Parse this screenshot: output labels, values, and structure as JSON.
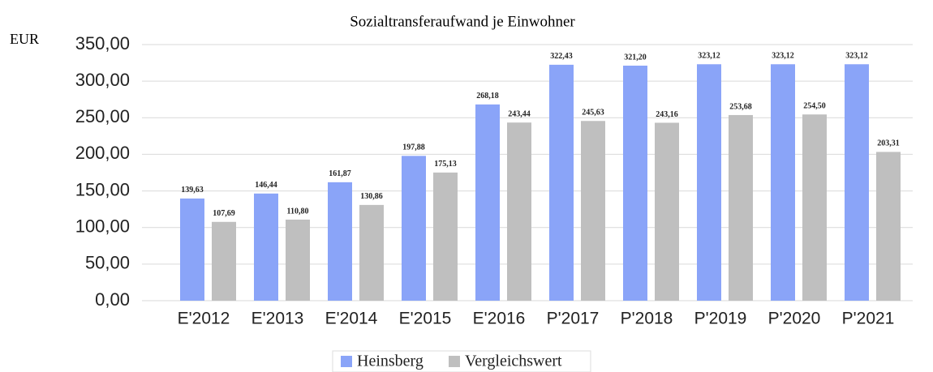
{
  "chart_data": {
    "type": "bar",
    "title": "Sozialtransferaufwand je Einwohner",
    "y_label": "EUR",
    "categories": [
      "E'2012",
      "E'2013",
      "E'2014",
      "E'2015",
      "E'2016",
      "P'2017",
      "P'2018",
      "P'2019",
      "P'2020",
      "P'2021"
    ],
    "series": [
      {
        "name": "Heinsberg",
        "color": "#8aa4f8",
        "values": [
          139.63,
          146.44,
          161.87,
          197.88,
          268.18,
          322.43,
          321.2,
          323.12,
          323.12,
          323.12
        ],
        "value_labels": [
          "139,63",
          "146,44",
          "161,87",
          "197,88",
          "268,18",
          "322,43",
          "321,20",
          "323,12",
          "323,12",
          "323,12"
        ]
      },
      {
        "name": "Vergleichswert",
        "color": "#bfbfbf",
        "values": [
          107.69,
          110.8,
          130.86,
          175.13,
          243.44,
          245.63,
          243.16,
          253.68,
          254.5,
          203.31
        ],
        "value_labels": [
          "107,69",
          "110,80",
          "130,86",
          "175,13",
          "243,44",
          "245,63",
          "243,16",
          "253,68",
          "254,50",
          "203,31"
        ]
      }
    ],
    "ylim": [
      0,
      350
    ],
    "yticks": [
      {
        "value": 0,
        "label": "0,00"
      },
      {
        "value": 50,
        "label": "50,00"
      },
      {
        "value": 100,
        "label": "100,00"
      },
      {
        "value": 150,
        "label": "150,00"
      },
      {
        "value": 200,
        "label": "200,00"
      },
      {
        "value": 250,
        "label": "250,00"
      },
      {
        "value": 300,
        "label": "300,00"
      },
      {
        "value": 350,
        "label": "350,00"
      }
    ],
    "grid": true,
    "legend": "bottom"
  }
}
